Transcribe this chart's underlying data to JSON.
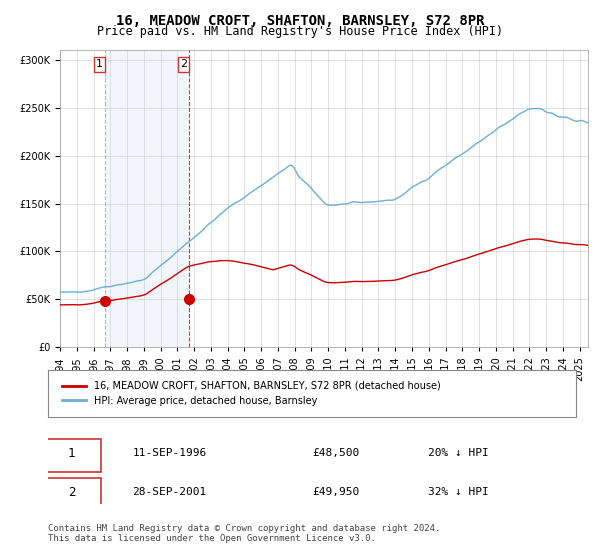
{
  "title": "16, MEADOW CROFT, SHAFTON, BARNSLEY, S72 8PR",
  "subtitle": "Price paid vs. HM Land Registry's House Price Index (HPI)",
  "sale1_date": "1996-09-11",
  "sale1_price": 48500,
  "sale1_label": "11-SEP-1996",
  "sale1_price_str": "£48,500",
  "sale1_hpi_str": "20% ↓ HPI",
  "sale2_date": "2001-09-28",
  "sale2_price": 49950,
  "sale2_label": "28-SEP-2001",
  "sale2_price_str": "£49,950",
  "sale2_hpi_str": "32% ↓ HPI",
  "hpi_color": "#6baed6",
  "price_color": "#cc0000",
  "legend1": "16, MEADOW CROFT, SHAFTON, BARNSLEY, S72 8PR (detached house)",
  "legend2": "HPI: Average price, detached house, Barnsley",
  "footer": "Contains HM Land Registry data © Crown copyright and database right 2024.\nThis data is licensed under the Open Government Licence v3.0.",
  "ylim": [
    0,
    310000
  ],
  "xstart_year": 1994,
  "xend_year": 2025,
  "background_color": "#ffffff",
  "plot_bg_color": "#ffffff",
  "grid_color": "#cccccc",
  "hatched_color": "#ddeeff"
}
